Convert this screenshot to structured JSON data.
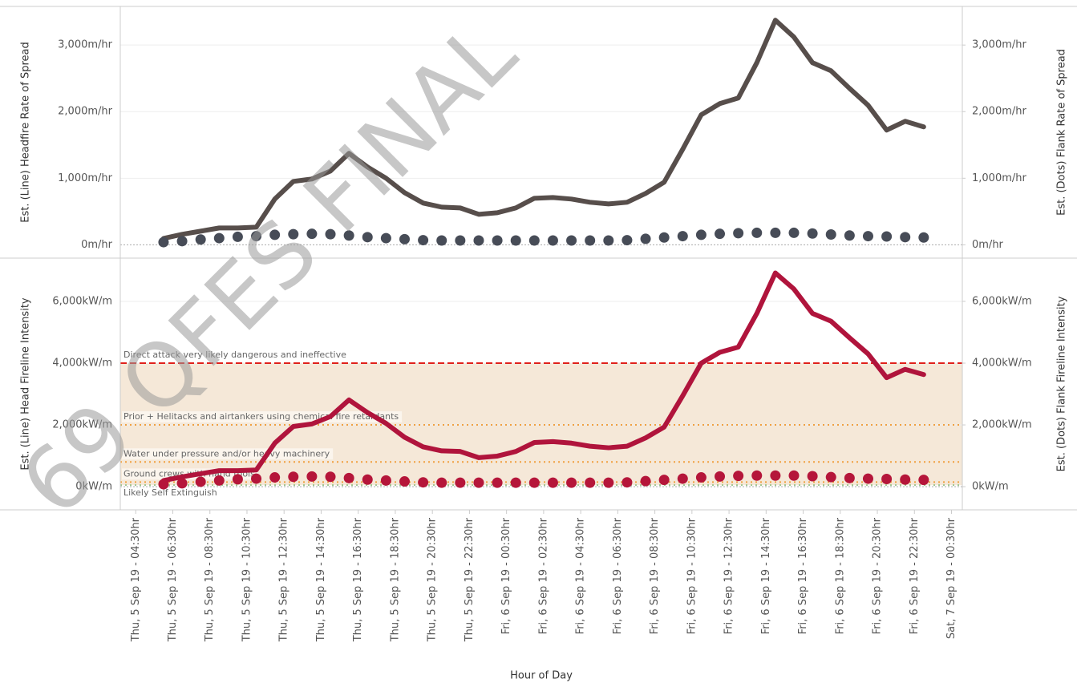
{
  "watermark": "69 QFES FINAL",
  "chart_data": [
    {
      "type": "line",
      "ylabel": "Est. (Line) Headfire Rate of Spread",
      "y2label": "Est. (Dots) Flank Rate of Spread",
      "xlim": [
        "2019-09-05T03:40",
        "2019-09-07T01:05"
      ],
      "x": [
        "2019-09-05T06:00",
        "2019-09-05T07:00",
        "2019-09-05T08:00",
        "2019-09-05T09:00",
        "2019-09-05T10:00",
        "2019-09-05T11:00",
        "2019-09-05T12:00",
        "2019-09-05T13:00",
        "2019-09-05T14:00",
        "2019-09-05T15:00",
        "2019-09-05T16:00",
        "2019-09-05T17:00",
        "2019-09-05T18:00",
        "2019-09-05T19:00",
        "2019-09-05T20:00",
        "2019-09-05T21:00",
        "2019-09-05T22:00",
        "2019-09-05T23:00",
        "2019-09-06T00:00",
        "2019-09-06T01:00",
        "2019-09-06T02:00",
        "2019-09-06T03:00",
        "2019-09-06T04:00",
        "2019-09-06T05:00",
        "2019-09-06T06:00",
        "2019-09-06T07:00",
        "2019-09-06T08:00",
        "2019-09-06T09:00",
        "2019-09-06T10:00",
        "2019-09-06T11:00",
        "2019-09-06T12:00",
        "2019-09-06T13:00",
        "2019-09-06T14:00",
        "2019-09-06T15:00",
        "2019-09-06T16:00",
        "2019-09-06T17:00",
        "2019-09-06T18:00",
        "2019-09-06T19:00",
        "2019-09-06T20:00",
        "2019-09-06T21:00",
        "2019-09-06T22:00",
        "2019-09-06T23:00"
      ],
      "ylim": [
        -200,
        3580
      ],
      "yticks": [
        {
          "value": 0,
          "label": "0m/hr"
        },
        {
          "value": 1000,
          "label": "1,000m/hr"
        },
        {
          "value": 2000,
          "label": "2,000m/hr"
        },
        {
          "value": 3000,
          "label": "3,000m/hr"
        }
      ],
      "y2lim": [
        -200,
        3580
      ],
      "y2ticks": [
        {
          "value": 0,
          "label": "0m/hr"
        },
        {
          "value": 1000,
          "label": "1,000m/hr"
        },
        {
          "value": 2000,
          "label": "2,000m/hr"
        },
        {
          "value": 3000,
          "label": "3,000m/hr"
        }
      ],
      "grid": true,
      "series": [
        {
          "style": "line",
          "color": "#574e4b",
          "values": [
            96,
            157,
            205,
            253,
            253,
            265,
            687,
            952,
            988,
            1108,
            1373,
            1169,
            1000,
            783,
            627,
            566,
            554,
            458,
            482,
            554,
            699,
            711,
            687,
            639,
            614,
            639,
            771,
            940,
            1434,
            1952,
            2120,
            2205,
            2735,
            3373,
            3120,
            2735,
            2614,
            2349,
            2096,
            1723,
            1855,
            1771
          ]
        },
        {
          "style": "dots",
          "axis": "y2",
          "color": "#474c57",
          "values": [
            40,
            55,
            80,
            100,
            120,
            130,
            150,
            160,
            165,
            160,
            140,
            115,
            100,
            85,
            70,
            65,
            65,
            65,
            65,
            65,
            65,
            65,
            65,
            65,
            65,
            70,
            90,
            110,
            130,
            150,
            165,
            175,
            180,
            180,
            180,
            170,
            155,
            140,
            130,
            125,
            115,
            110
          ]
        }
      ]
    },
    {
      "type": "line",
      "ylabel": "Est. (Line) Head Fireline Intensity",
      "y2label": "Est. (Dots) Flank Fireline Intensity",
      "xlabel": "Hour of Day",
      "xlim": [
        "2019-09-05T03:40",
        "2019-09-07T01:05"
      ],
      "x": [
        "2019-09-05T06:00",
        "2019-09-05T07:00",
        "2019-09-05T08:00",
        "2019-09-05T09:00",
        "2019-09-05T10:00",
        "2019-09-05T11:00",
        "2019-09-05T12:00",
        "2019-09-05T13:00",
        "2019-09-05T14:00",
        "2019-09-05T15:00",
        "2019-09-05T16:00",
        "2019-09-05T17:00",
        "2019-09-05T18:00",
        "2019-09-05T19:00",
        "2019-09-05T20:00",
        "2019-09-05T21:00",
        "2019-09-05T22:00",
        "2019-09-05T23:00",
        "2019-09-06T00:00",
        "2019-09-06T01:00",
        "2019-09-06T02:00",
        "2019-09-06T03:00",
        "2019-09-06T04:00",
        "2019-09-06T05:00",
        "2019-09-06T06:00",
        "2019-09-06T07:00",
        "2019-09-06T08:00",
        "2019-09-06T09:00",
        "2019-09-06T10:00",
        "2019-09-06T11:00",
        "2019-09-06T12:00",
        "2019-09-06T13:00",
        "2019-09-06T14:00",
        "2019-09-06T15:00",
        "2019-09-06T16:00",
        "2019-09-06T17:00",
        "2019-09-06T18:00",
        "2019-09-06T19:00",
        "2019-09-06T20:00",
        "2019-09-06T21:00",
        "2019-09-06T22:00",
        "2019-09-06T23:00"
      ],
      "xticks": [
        {
          "value": "2019-09-05T04:30",
          "label": "Thu, 5 Sep 19 - 04:30hr"
        },
        {
          "value": "2019-09-05T06:30",
          "label": "Thu, 5 Sep 19 - 06:30hr"
        },
        {
          "value": "2019-09-05T08:30",
          "label": "Thu, 5 Sep 19 - 08:30hr"
        },
        {
          "value": "2019-09-05T10:30",
          "label": "Thu, 5 Sep 19 - 10:30hr"
        },
        {
          "value": "2019-09-05T12:30",
          "label": "Thu, 5 Sep 19 - 12:30hr"
        },
        {
          "value": "2019-09-05T14:30",
          "label": "Thu, 5 Sep 19 - 14:30hr"
        },
        {
          "value": "2019-09-05T16:30",
          "label": "Thu, 5 Sep 19 - 16:30hr"
        },
        {
          "value": "2019-09-05T18:30",
          "label": "Thu, 5 Sep 19 - 18:30hr"
        },
        {
          "value": "2019-09-05T20:30",
          "label": "Thu, 5 Sep 19 - 20:30hr"
        },
        {
          "value": "2019-09-05T22:30",
          "label": "Thu, 5 Sep 19 - 22:30hr"
        },
        {
          "value": "2019-09-06T00:30",
          "label": "Fri, 6 Sep 19 - 00:30hr"
        },
        {
          "value": "2019-09-06T02:30",
          "label": "Fri, 6 Sep 19 - 02:30hr"
        },
        {
          "value": "2019-09-06T04:30",
          "label": "Fri, 6 Sep 19 - 04:30hr"
        },
        {
          "value": "2019-09-06T06:30",
          "label": "Fri, 6 Sep 19 - 06:30hr"
        },
        {
          "value": "2019-09-06T08:30",
          "label": "Fri, 6 Sep 19 - 08:30hr"
        },
        {
          "value": "2019-09-06T10:30",
          "label": "Fri, 6 Sep 19 - 10:30hr"
        },
        {
          "value": "2019-09-06T12:30",
          "label": "Fri, 6 Sep 19 - 12:30hr"
        },
        {
          "value": "2019-09-06T14:30",
          "label": "Fri, 6 Sep 19 - 14:30hr"
        },
        {
          "value": "2019-09-06T16:30",
          "label": "Fri, 6 Sep 19 - 16:30hr"
        },
        {
          "value": "2019-09-06T18:30",
          "label": "Fri, 6 Sep 19 - 18:30hr"
        },
        {
          "value": "2019-09-06T20:30",
          "label": "Fri, 6 Sep 19 - 20:30hr"
        },
        {
          "value": "2019-09-06T22:30",
          "label": "Fri, 6 Sep 19 - 22:30hr"
        },
        {
          "value": "2019-09-07T00:30",
          "label": "Sat, 7 Sep 19 - 00:30hr"
        }
      ],
      "ylim": [
        -750,
        7400
      ],
      "yticks": [
        {
          "value": 0,
          "label": "0kW/m"
        },
        {
          "value": 2000,
          "label": "2,000kW/m"
        },
        {
          "value": 4000,
          "label": "4,000kW/m"
        },
        {
          "value": 6000,
          "label": "6,000kW/m"
        }
      ],
      "y2lim": [
        -750,
        7400
      ],
      "y2ticks": [
        {
          "value": 0,
          "label": "0kW/m"
        },
        {
          "value": 2000,
          "label": "2,000kW/m"
        },
        {
          "value": 4000,
          "label": "4,000kW/m"
        },
        {
          "value": 6000,
          "label": "6,000kW/m"
        }
      ],
      "grid": true,
      "band_color": "#f5e8d8",
      "reference_lines": [
        {
          "label": "Direct attack very likely dangerous and ineffective",
          "value": 4000,
          "color": "#e0201b",
          "style": "dashed"
        },
        {
          "label": "Prior + Helitacks and airtankers using chemical fire retardants",
          "value": 2000,
          "color": "#f0a040",
          "style": "dotted"
        },
        {
          "label": "Water under pressure and/or heavy machinery",
          "value": 800,
          "color": "#f0a040",
          "style": "dotted"
        },
        {
          "label": "Ground crews with hand tools",
          "value": 150,
          "color": "#f0a040",
          "style": "dotted"
        },
        {
          "label": "Likely Self Extinguish",
          "value": 50,
          "color": "#9cc48c",
          "style": "dotted",
          "label_position": "below"
        }
      ],
      "series": [
        {
          "style": "line",
          "color": "#b0143c",
          "values": [
            200,
            320,
            420,
            520,
            520,
            540,
            1410,
            1950,
            2030,
            2270,
            2810,
            2400,
            2050,
            1600,
            1290,
            1160,
            1140,
            940,
            990,
            1140,
            1430,
            1460,
            1410,
            1310,
            1260,
            1310,
            1580,
            1930,
            2940,
            4000,
            4350,
            4520,
            5610,
            6920,
            6400,
            5610,
            5360,
            4820,
            4300,
            3530,
            3800,
            3630
          ]
        },
        {
          "style": "dots",
          "axis": "y2",
          "color": "#b5163a",
          "values": [
            80,
            110,
            160,
            200,
            240,
            260,
            300,
            320,
            330,
            320,
            280,
            230,
            200,
            170,
            140,
            130,
            130,
            130,
            130,
            130,
            130,
            130,
            130,
            130,
            130,
            140,
            180,
            220,
            260,
            300,
            330,
            350,
            360,
            360,
            360,
            340,
            310,
            280,
            260,
            250,
            230,
            220
          ]
        }
      ]
    }
  ]
}
